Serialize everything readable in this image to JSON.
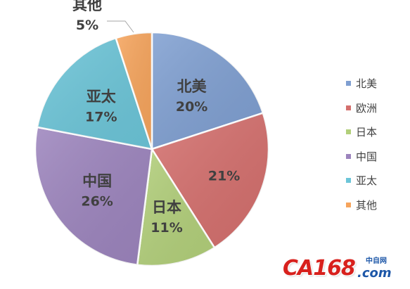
{
  "chart_data": {
    "type": "pie",
    "slices": [
      {
        "label": "北美",
        "value": 20,
        "pct_text": "20%",
        "color": "#7f9fd1"
      },
      {
        "label": "欧洲",
        "value": 21,
        "pct_text": "21%",
        "color": "#d46f6d"
      },
      {
        "label": "日本",
        "value": 11,
        "pct_text": "11%",
        "color": "#b2cf7a"
      },
      {
        "label": "中国",
        "value": 26,
        "pct_text": "26%",
        "color": "#9c84bd"
      },
      {
        "label": "亚太",
        "value": 17,
        "pct_text": "17%",
        "color": "#6cc5d8"
      },
      {
        "label": "其他",
        "value": 5,
        "pct_text": "5%",
        "color": "#f6a45c"
      }
    ],
    "start_angle_deg": 0,
    "direction": "clockwise",
    "legend": {
      "position": "right",
      "items": [
        "北美",
        "欧洲",
        "日本",
        "中国",
        "亚太",
        "其他"
      ]
    }
  },
  "watermark": {
    "logo": "CA168",
    "domain": ".com",
    "cn_text": "中自网"
  }
}
